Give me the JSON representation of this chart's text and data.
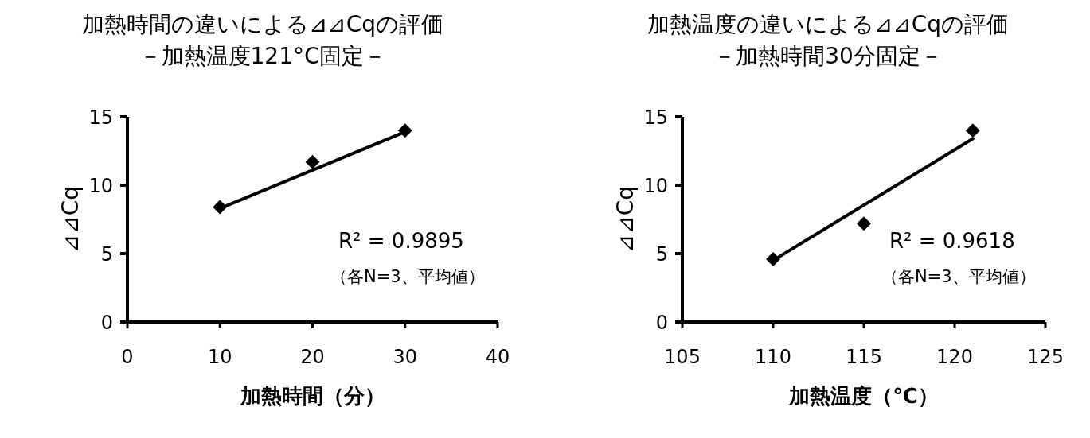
{
  "chart_data": [
    {
      "type": "scatter",
      "title": "加熱時間の違いによる⊿⊿Cqの評価",
      "subtitle": "－加熱温度121°C固定－",
      "xlabel": "加熱時間（分）",
      "ylabel": "⊿⊿Cq",
      "x": [
        10,
        20,
        30
      ],
      "xlim": [
        0,
        40
      ],
      "xticks": [
        0,
        10,
        20,
        30,
        40
      ],
      "ylim": [
        0,
        15
      ],
      "yticks": [
        0,
        5,
        10,
        15
      ],
      "grid": false,
      "series": [
        {
          "color": "#000000",
          "marker": "diamond",
          "values": [
            8.4,
            11.7,
            14.0
          ]
        },
        {
          "type": "line",
          "color": "#000000",
          "x": [
            10,
            30
          ],
          "values": [
            8.3,
            13.9
          ]
        }
      ],
      "annotations": [
        "R² = 0.9895",
        "（各N=3、平均値）"
      ]
    },
    {
      "type": "scatter",
      "title": "加熱温度の違いによる⊿⊿Cqの評価",
      "subtitle": "－加熱時間30分固定－",
      "xlabel": "加熱温度（℃）",
      "ylabel": "⊿⊿Cq",
      "x": [
        110,
        115,
        121
      ],
      "xlim": [
        105,
        125
      ],
      "xticks": [
        105,
        110,
        115,
        120,
        125
      ],
      "ylim": [
        0,
        15
      ],
      "yticks": [
        0,
        5,
        10,
        15
      ],
      "grid": false,
      "series": [
        {
          "color": "#000000",
          "marker": "diamond",
          "values": [
            4.6,
            7.2,
            14.0
          ]
        },
        {
          "type": "line",
          "color": "#000000",
          "x": [
            110,
            121
          ],
          "values": [
            4.5,
            13.4
          ]
        }
      ],
      "annotations": [
        "R² = 0.9618",
        "（各N=3、平均値）"
      ]
    }
  ]
}
